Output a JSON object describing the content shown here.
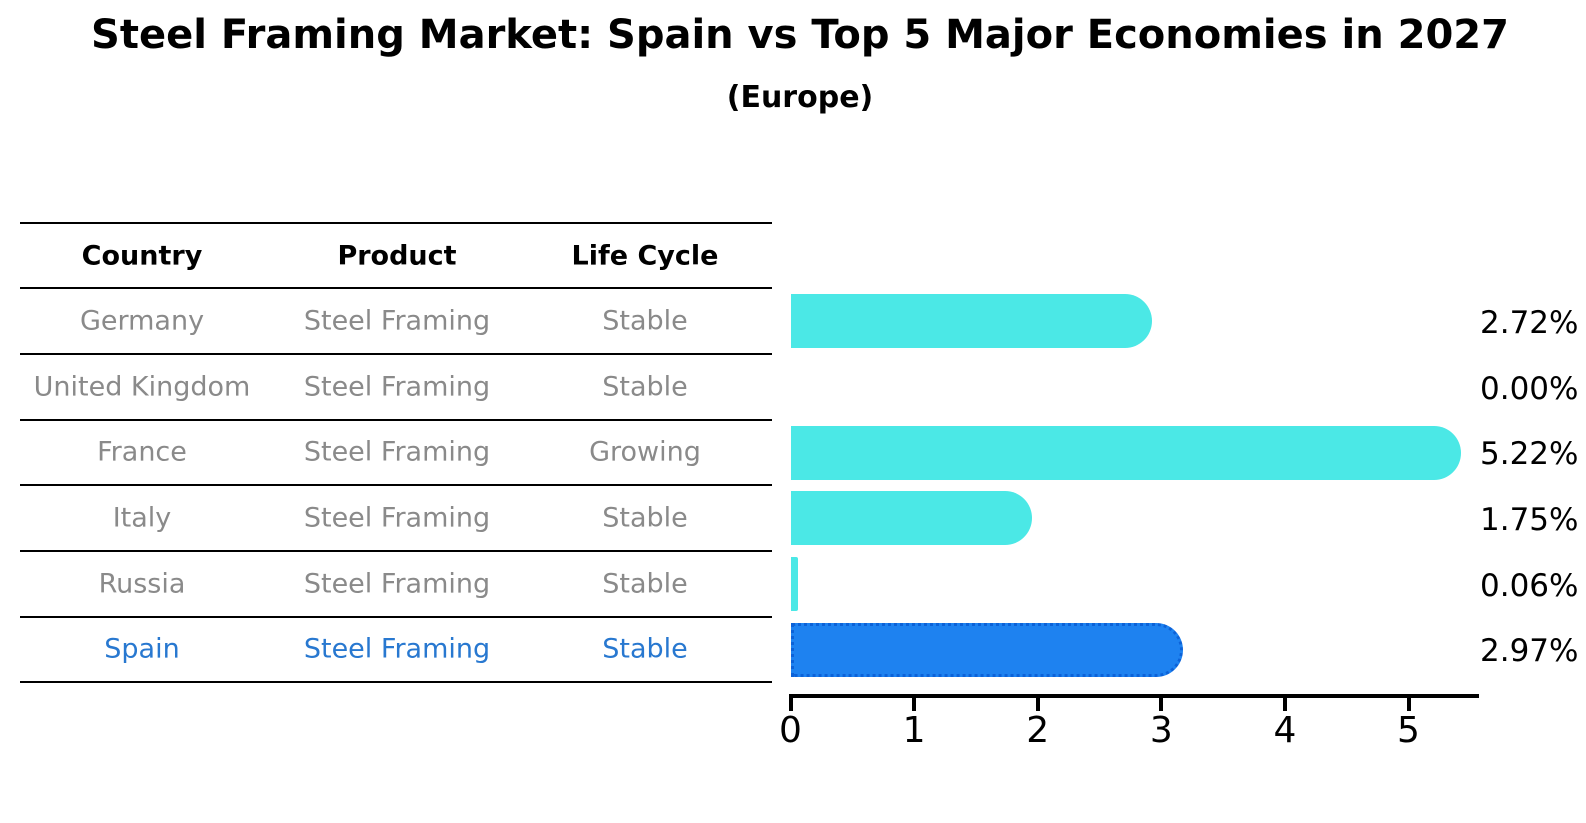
{
  "title": "Steel Framing Market: Spain vs Top 5 Major Economies in 2027",
  "subtitle": "(Europe)",
  "table": {
    "headers": [
      "Country",
      "Product",
      "Life Cycle"
    ],
    "rows": [
      {
        "country": "Germany",
        "product": "Steel Framing",
        "life_cycle": "Stable",
        "highlighted": false
      },
      {
        "country": "United Kingdom",
        "product": "Steel Framing",
        "life_cycle": "Stable",
        "highlighted": false
      },
      {
        "country": "France",
        "product": "Steel Framing",
        "life_cycle": "Growing",
        "highlighted": false
      },
      {
        "country": "Italy",
        "product": "Steel Framing",
        "life_cycle": "Stable",
        "highlighted": false
      },
      {
        "country": "Russia",
        "product": "Steel Framing",
        "life_cycle": "Stable",
        "highlighted": false
      },
      {
        "country": "Spain",
        "product": "Steel Framing",
        "life_cycle": "Stable",
        "highlighted": true
      }
    ]
  },
  "chart_data": {
    "type": "bar",
    "orientation": "horizontal",
    "title": "Steel Framing Market: Spain vs Top 5 Major Economies in 2027",
    "subtitle": "(Europe)",
    "categories": [
      "Germany",
      "United Kingdom",
      "France",
      "Italy",
      "Russia",
      "Spain"
    ],
    "values": [
      2.72,
      0.0,
      5.22,
      1.75,
      0.06,
      2.97
    ],
    "value_labels": [
      "2.72%",
      "0.00%",
      "5.22%",
      "1.75%",
      "0.06%",
      "2.97%"
    ],
    "xticks": [
      "0",
      "1",
      "2",
      "3",
      "4",
      "5"
    ],
    "xlim": [
      0,
      5.57
    ],
    "grid": false,
    "legend": false,
    "colors": {
      "bar": "#4be8e6",
      "highlight_bar": "#1e82f0",
      "highlight_bar_edge": "#0c62d8",
      "highlight_text": "#2878d0",
      "row_text": "#8a8a8a",
      "header_text": "#000000"
    },
    "highlight_index": 5
  }
}
